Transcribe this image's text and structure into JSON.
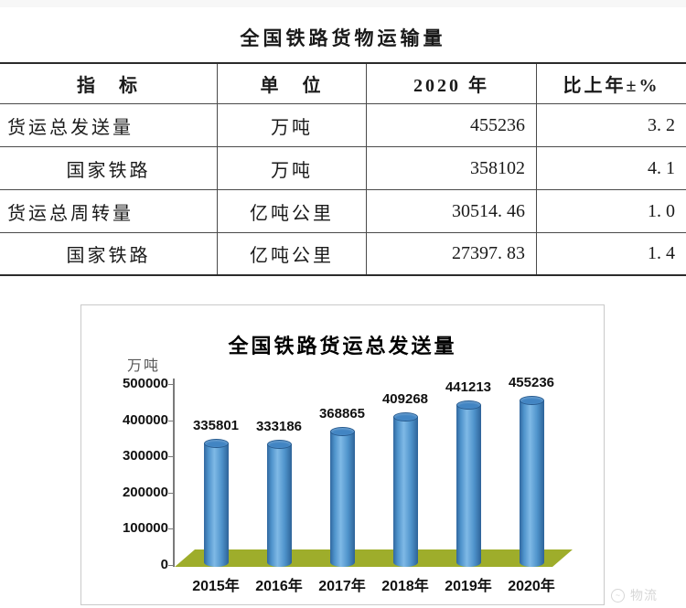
{
  "page": {
    "title": "全国铁路货物运输量",
    "watermark": "物流"
  },
  "table": {
    "headers": [
      "指　标",
      "单　位",
      "2020 年",
      "比上年±%"
    ],
    "rows": [
      {
        "indicator": "货运总发送量",
        "unit": "万吨",
        "value": "455236",
        "change": "3. 2"
      },
      {
        "indicator": "国家铁路",
        "unit": "万吨",
        "value": "358102",
        "change": "4. 1"
      },
      {
        "indicator": "货运总周转量",
        "unit": "亿吨公里",
        "value": "30514. 46",
        "change": "1. 0"
      },
      {
        "indicator": "国家铁路",
        "unit": "亿吨公里",
        "value": "27397. 83",
        "change": "1. 4"
      }
    ]
  },
  "chart_data": {
    "type": "bar",
    "title": "全国铁路货运总发送量",
    "ylabel": "万吨",
    "xlabel": "",
    "categories": [
      "2015年",
      "2016年",
      "2017年",
      "2018年",
      "2019年",
      "2020年"
    ],
    "values": [
      335801,
      333186,
      368865,
      409268,
      441213,
      455236
    ],
    "ylim": [
      0,
      500000
    ],
    "ytick_step": 100000,
    "grid": false,
    "data_labels": true,
    "legend": "none",
    "bar_style": "cylinder-3d",
    "bar_color": "#4e93cb",
    "floor_color": "#9ead2b"
  }
}
